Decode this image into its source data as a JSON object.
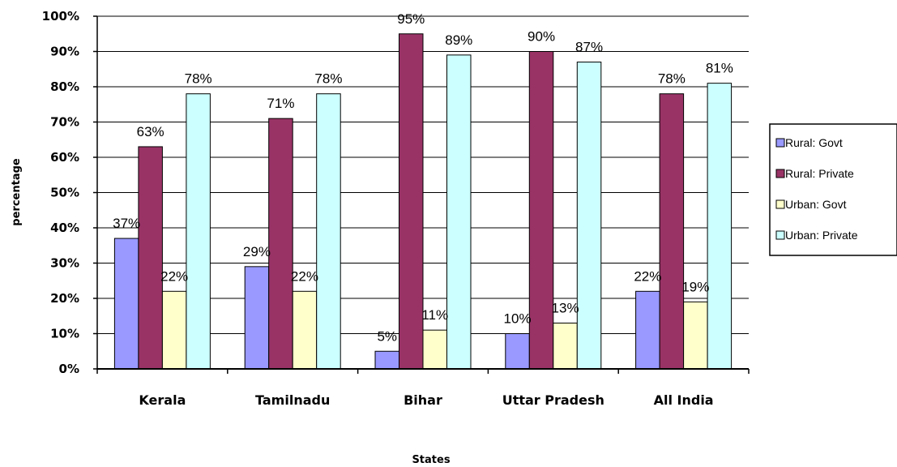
{
  "chart_data": {
    "type": "bar",
    "title": "",
    "xlabel": "States",
    "ylabel": "percentage",
    "categories": [
      "Kerala",
      "Tamilnadu",
      "Bihar",
      "Uttar Pradesh",
      "All India"
    ],
    "series": [
      {
        "name": "Rural: Govt",
        "color": "#9999ff",
        "values": [
          37,
          29,
          5,
          10,
          22
        ],
        "labels": [
          "37%",
          "29%",
          "5%",
          "10%",
          "22%"
        ]
      },
      {
        "name": "Rural: Private",
        "color": "#993366",
        "values": [
          63,
          71,
          95,
          90,
          78
        ],
        "labels": [
          "63%",
          "71%",
          "95%",
          "90%",
          "78%"
        ]
      },
      {
        "name": "Urban: Govt",
        "color": "#ffffcc",
        "values": [
          22,
          22,
          11,
          13,
          19
        ],
        "labels": [
          "22%",
          "22%",
          "11%",
          "13%",
          "19%"
        ]
      },
      {
        "name": "Urban: Private",
        "color": "#ccffff",
        "values": [
          78,
          78,
          89,
          87,
          81
        ],
        "labels": [
          "78%",
          "78%",
          "89%",
          "87%",
          "81%"
        ]
      }
    ],
    "ylim": [
      0,
      100
    ],
    "yticks": [
      "0%",
      "10%",
      "20%",
      "30%",
      "40%",
      "50%",
      "60%",
      "70%",
      "80%",
      "90%",
      "100%"
    ],
    "grid": true,
    "legend_position": "right"
  }
}
